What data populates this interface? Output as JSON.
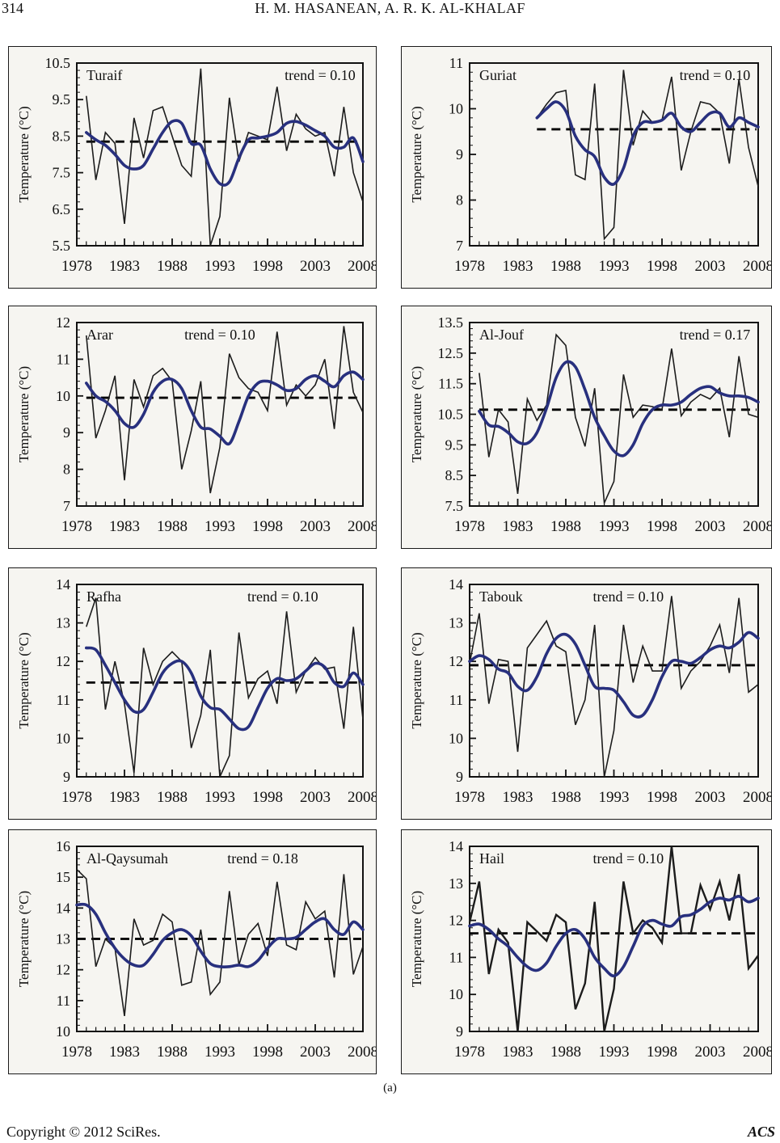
{
  "page": {
    "page_number": "314",
    "header_title": "H. M. HASANEAN, A. R. K. AL-KHALAF",
    "subfigure_label": "(a)",
    "footer_left": "Copyright © 2012 SciRes.",
    "footer_right": "ACS"
  },
  "colors": {
    "raw_line": "#1c1c1c",
    "smooth_line": "#28307e",
    "trend_line": "#000000",
    "frame": "#111111",
    "chart_bg": "#f6f5f1"
  },
  "axis": {
    "xlim": [
      1978,
      2008
    ],
    "x_ticks": [
      1978,
      1983,
      1988,
      1993,
      1998,
      2003,
      2008
    ],
    "ylabel": "Temperature (°C)"
  },
  "chart_data": [
    {
      "type": "line",
      "station": "Turaif",
      "trend_label": "trend = 0.10",
      "trend": 0.1,
      "ylim": [
        5.5,
        10.5
      ],
      "y_tick_labels": [
        "5.5",
        "6.5",
        "7.5",
        "8.5",
        "9.5",
        "10.5"
      ],
      "x_start": 1979,
      "mean": 8.35,
      "trend_x": 0.85,
      "annual_values": [
        9.6,
        7.3,
        8.6,
        8.3,
        6.1,
        9.0,
        7.9,
        9.2,
        9.3,
        8.5,
        7.7,
        7.4,
        10.35,
        5.5,
        6.3,
        9.55,
        7.8,
        8.6,
        8.5,
        8.4,
        9.85,
        8.1,
        9.1,
        8.7,
        8.5,
        8.6,
        7.4,
        9.3,
        7.5,
        6.7
      ],
      "smoothed_values": [
        8.6,
        8.4,
        8.25,
        8.0,
        7.7,
        7.6,
        7.7,
        8.15,
        8.6,
        8.9,
        8.85,
        8.3,
        8.25,
        7.6,
        7.2,
        7.25,
        7.9,
        8.4,
        8.45,
        8.5,
        8.6,
        8.85,
        8.9,
        8.8,
        8.65,
        8.5,
        8.2,
        8.2,
        8.45,
        7.8
      ]
    },
    {
      "type": "line",
      "station": "Guriat",
      "trend_label": "trend = 0.10",
      "trend": 0.1,
      "ylim": [
        7,
        11
      ],
      "y_tick_labels": [
        "7",
        "8",
        "9",
        "10",
        "11"
      ],
      "x_start": 1985,
      "mean": 9.55,
      "trend_x": 0.85,
      "annual_values": [
        9.8,
        10.1,
        10.35,
        10.4,
        8.55,
        8.45,
        10.55,
        7.15,
        7.4,
        10.85,
        9.2,
        9.95,
        9.7,
        9.75,
        10.7,
        8.65,
        9.5,
        10.15,
        10.1,
        9.9,
        8.8,
        10.65,
        9.15,
        8.3
      ],
      "smoothed_values": [
        9.8,
        10.0,
        10.15,
        9.95,
        9.4,
        9.1,
        8.95,
        8.5,
        8.35,
        8.7,
        9.4,
        9.7,
        9.7,
        9.75,
        9.9,
        9.6,
        9.5,
        9.7,
        9.9,
        9.9,
        9.6,
        9.8,
        9.7,
        9.6
      ]
    },
    {
      "type": "line",
      "station": "Arar",
      "trend_label": "trend = 0.10",
      "trend": 0.1,
      "ylim": [
        7,
        12
      ],
      "y_tick_labels": [
        "7",
        "8",
        "9",
        "10",
        "11",
        "12"
      ],
      "x_start": 1979,
      "mean": 9.95,
      "trend_x": 0.5,
      "annual_values": [
        11.65,
        8.85,
        9.6,
        10.55,
        7.7,
        10.45,
        9.7,
        10.55,
        10.75,
        10.4,
        8.0,
        9.05,
        10.4,
        7.35,
        8.6,
        11.15,
        10.5,
        10.2,
        10.1,
        9.6,
        11.75,
        9.75,
        10.3,
        10.0,
        10.3,
        11.0,
        9.1,
        11.9,
        10.1,
        9.55
      ],
      "smoothed_values": [
        10.35,
        10.0,
        9.85,
        9.6,
        9.25,
        9.15,
        9.5,
        10.1,
        10.4,
        10.45,
        10.2,
        9.6,
        9.15,
        9.1,
        8.9,
        8.7,
        9.3,
        10.0,
        10.35,
        10.4,
        10.3,
        10.15,
        10.2,
        10.45,
        10.55,
        10.4,
        10.25,
        10.55,
        10.65,
        10.45
      ]
    },
    {
      "type": "line",
      "station": "Al-Jouf",
      "trend_label": "trend = 0.17",
      "trend": 0.17,
      "ylim": [
        7.5,
        13.5
      ],
      "y_tick_labels": [
        "7.5",
        "8.5",
        "9.5",
        "10.5",
        "11.5",
        "12.5",
        "13.5"
      ],
      "x_start": 1979,
      "mean": 10.65,
      "trend_x": 0.85,
      "annual_values": [
        11.85,
        9.1,
        10.65,
        10.25,
        7.9,
        11.0,
        10.3,
        10.8,
        13.1,
        12.75,
        10.4,
        9.45,
        11.35,
        7.6,
        8.3,
        11.8,
        10.4,
        10.8,
        10.75,
        10.65,
        12.65,
        10.45,
        10.9,
        11.15,
        11.0,
        11.35,
        9.75,
        12.4,
        10.5,
        10.4
      ],
      "smoothed_values": [
        10.6,
        10.15,
        10.1,
        9.9,
        9.6,
        9.55,
        9.9,
        10.7,
        11.7,
        12.2,
        12.05,
        11.3,
        10.4,
        9.8,
        9.3,
        9.15,
        9.5,
        10.2,
        10.65,
        10.8,
        10.8,
        10.9,
        11.15,
        11.35,
        11.4,
        11.2,
        11.1,
        11.1,
        11.05,
        10.9
      ]
    },
    {
      "type": "line",
      "station": "Rafha",
      "trend_label": "trend = 0.10",
      "trend": 0.1,
      "ylim": [
        9,
        14
      ],
      "y_tick_labels": [
        "9",
        "10",
        "11",
        "12",
        "13",
        "14"
      ],
      "x_start": 1979,
      "mean": 11.45,
      "trend_x": 0.72,
      "annual_values": [
        12.9,
        13.65,
        10.75,
        12.0,
        10.9,
        9.1,
        12.35,
        11.4,
        12.0,
        12.25,
        12.0,
        9.75,
        10.6,
        12.3,
        8.95,
        9.55,
        12.75,
        11.05,
        11.55,
        11.75,
        10.9,
        13.3,
        11.2,
        11.75,
        12.1,
        11.8,
        11.85,
        10.25,
        12.9,
        10.5
      ],
      "smoothed_values": [
        12.35,
        12.3,
        11.9,
        11.45,
        11.0,
        10.7,
        10.75,
        11.2,
        11.7,
        11.95,
        12.0,
        11.7,
        11.1,
        10.8,
        10.75,
        10.5,
        10.25,
        10.3,
        10.8,
        11.3,
        11.55,
        11.5,
        11.55,
        11.75,
        11.95,
        11.85,
        11.45,
        11.35,
        11.7,
        11.4
      ]
    },
    {
      "type": "line",
      "station": "Tabouk",
      "trend_label": "trend = 0.10",
      "trend": 0.1,
      "ylim": [
        9,
        14
      ],
      "y_tick_labels": [
        "9",
        "10",
        "11",
        "12",
        "13",
        "14"
      ],
      "x_start": 1978,
      "mean": 11.9,
      "trend_x": 0.55,
      "annual_values": [
        11.95,
        13.25,
        10.9,
        12.05,
        12.0,
        9.65,
        12.35,
        12.7,
        13.05,
        12.4,
        12.25,
        10.35,
        11.0,
        12.95,
        9.0,
        10.2,
        12.95,
        11.45,
        12.4,
        11.75,
        11.75,
        13.7,
        11.3,
        11.75,
        12.0,
        12.4,
        12.95,
        11.7,
        13.65,
        11.2,
        11.4
      ],
      "smoothed_values": [
        12.0,
        12.15,
        12.05,
        11.8,
        11.7,
        11.35,
        11.25,
        11.6,
        12.2,
        12.6,
        12.7,
        12.45,
        11.9,
        11.35,
        11.3,
        11.25,
        10.95,
        10.6,
        10.6,
        11.0,
        11.6,
        12.0,
        12.0,
        11.95,
        12.1,
        12.3,
        12.4,
        12.35,
        12.5,
        12.75,
        12.6
      ]
    },
    {
      "type": "line",
      "station": "Al-Qaysumah",
      "trend_label": "trend = 0.18",
      "trend": 0.18,
      "ylim": [
        10,
        16
      ],
      "y_tick_labels": [
        "10",
        "11",
        "12",
        "13",
        "14",
        "15",
        "16"
      ],
      "x_start": 1978,
      "mean": 13.0,
      "trend_x": 0.65,
      "annual_values": [
        15.25,
        14.95,
        12.1,
        13.0,
        12.7,
        10.5,
        13.65,
        12.8,
        12.95,
        13.8,
        13.55,
        11.5,
        11.6,
        13.3,
        11.2,
        11.6,
        14.55,
        12.15,
        13.15,
        13.5,
        12.45,
        14.85,
        12.8,
        12.65,
        14.2,
        13.65,
        13.9,
        11.75,
        15.1,
        11.85,
        12.75
      ],
      "smoothed_values": [
        14.1,
        14.1,
        13.8,
        13.2,
        12.7,
        12.35,
        12.15,
        12.15,
        12.5,
        12.95,
        13.2,
        13.3,
        13.1,
        12.6,
        12.2,
        12.1,
        12.1,
        12.15,
        12.1,
        12.3,
        12.7,
        13.0,
        13.0,
        13.05,
        13.3,
        13.55,
        13.65,
        13.3,
        13.15,
        13.55,
        13.3
      ]
    },
    {
      "type": "line",
      "station": "Hail",
      "trend_label": "trend = 0.10",
      "trend": 0.1,
      "ylim": [
        9,
        14
      ],
      "y_tick_labels": [
        "9",
        "10",
        "11",
        "12",
        "13",
        "14"
      ],
      "x_start": 1978,
      "mean": 11.65,
      "trend_x": 0.55,
      "raw_width": 2.4,
      "annual_values": [
        11.95,
        13.05,
        10.55,
        11.75,
        11.4,
        8.95,
        11.95,
        11.7,
        11.45,
        12.15,
        11.95,
        9.6,
        10.3,
        12.5,
        9.0,
        10.15,
        13.05,
        11.65,
        12.0,
        11.8,
        11.4,
        14.0,
        11.65,
        11.65,
        12.95,
        12.3,
        13.05,
        12.0,
        13.25,
        10.7,
        11.05
      ],
      "smoothed_values": [
        11.85,
        11.9,
        11.75,
        11.5,
        11.3,
        11.0,
        10.75,
        10.65,
        10.85,
        11.3,
        11.65,
        11.75,
        11.5,
        11.0,
        10.7,
        10.5,
        10.75,
        11.3,
        11.85,
        12.0,
        11.9,
        11.85,
        12.1,
        12.15,
        12.3,
        12.5,
        12.6,
        12.55,
        12.65,
        12.5,
        12.6
      ]
    }
  ]
}
